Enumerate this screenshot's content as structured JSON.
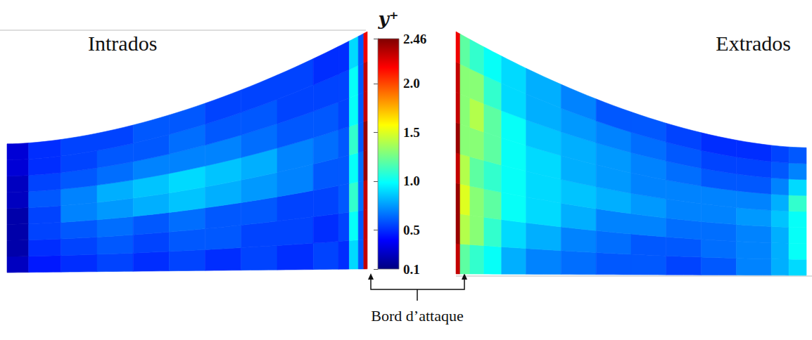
{
  "chart_data": {
    "type": "heatmap",
    "annotations": [
      "Bord d’attaque"
    ],
    "colorbar": {
      "title": "y⁺",
      "range": [
        0.1,
        2.46
      ],
      "ticks": [
        0.1,
        0.5,
        {
          "value": 1,
          "label": "1.0"
        },
        1.5,
        {
          "value": 2,
          "label": "2.0"
        },
        2.46
      ]
    },
    "panels": [
      {
        "name": "Intrados",
        "x_edges": [
          0,
          0.06,
          0.15,
          0.25,
          0.35,
          0.45,
          0.55,
          0.65,
          0.75,
          0.85,
          0.92,
          0.95,
          0.975,
          0.99,
          1.0
        ],
        "y_edges": [
          0,
          0.125,
          0.25,
          0.375,
          0.5,
          0.625,
          0.75,
          0.875,
          1.0
        ],
        "values": [
          [
            0.25,
            0.45,
            0.5,
            0.55,
            0.5,
            0.55,
            0.5,
            0.55,
            0.5,
            0.55,
            0.5,
            0.9,
            0.6,
            2.3
          ],
          [
            0.2,
            0.5,
            0.55,
            0.6,
            0.55,
            0.6,
            0.6,
            0.55,
            0.55,
            0.5,
            0.55,
            1.0,
            0.6,
            2.3
          ],
          [
            0.2,
            0.55,
            0.6,
            0.65,
            0.6,
            0.65,
            0.6,
            0.6,
            0.55,
            0.55,
            0.6,
            1.1,
            0.65,
            2.3
          ],
          [
            0.2,
            0.55,
            0.7,
            0.75,
            0.8,
            0.85,
            0.8,
            0.75,
            0.7,
            0.6,
            0.6,
            1.0,
            0.65,
            2.4
          ],
          [
            0.25,
            0.6,
            0.7,
            0.8,
            0.85,
            0.9,
            0.85,
            0.8,
            0.7,
            0.65,
            0.6,
            1.1,
            0.6,
            2.4
          ],
          [
            0.25,
            0.55,
            0.6,
            0.65,
            0.7,
            0.7,
            0.7,
            0.65,
            0.6,
            0.6,
            0.55,
            1.0,
            0.6,
            2.3
          ],
          [
            0.3,
            0.5,
            0.55,
            0.6,
            0.6,
            0.65,
            0.6,
            0.6,
            0.55,
            0.55,
            0.55,
            1.0,
            0.6,
            2.3
          ],
          [
            0.3,
            0.5,
            0.55,
            0.55,
            0.6,
            0.6,
            0.55,
            0.55,
            0.55,
            0.5,
            0.5,
            0.9,
            0.6,
            2.2
          ]
        ]
      },
      {
        "name": "Extrados",
        "x_edges": [
          0,
          0.012,
          0.04,
          0.08,
          0.13,
          0.2,
          0.3,
          0.4,
          0.5,
          0.6,
          0.7,
          0.8,
          0.9,
          0.95,
          1.0
        ],
        "y_edges": [
          0,
          0.125,
          0.25,
          0.375,
          0.5,
          0.625,
          0.75,
          0.875,
          1.0
        ],
        "values": [
          [
            2.3,
            1.2,
            1.1,
            1.0,
            0.8,
            0.7,
            0.65,
            0.6,
            0.6,
            0.55,
            0.6,
            0.7,
            0.8,
            0.9
          ],
          [
            2.4,
            1.4,
            1.3,
            1.1,
            0.9,
            0.8,
            0.7,
            0.65,
            0.6,
            0.6,
            0.65,
            0.7,
            0.8,
            1.0
          ],
          [
            2.4,
            1.5,
            1.3,
            1.2,
            1.0,
            0.9,
            0.8,
            0.7,
            0.7,
            0.65,
            0.65,
            0.7,
            0.8,
            1.0
          ],
          [
            2.3,
            1.4,
            1.2,
            1.1,
            1.0,
            0.9,
            0.85,
            0.8,
            0.75,
            0.7,
            0.7,
            0.75,
            0.85,
            1.0
          ],
          [
            2.4,
            1.3,
            1.3,
            1.2,
            1.0,
            0.9,
            0.8,
            0.75,
            0.7,
            0.7,
            0.7,
            0.7,
            0.8,
            1.1
          ],
          [
            2.3,
            1.3,
            1.4,
            1.2,
            1.0,
            0.85,
            0.8,
            0.75,
            0.7,
            0.65,
            0.6,
            0.6,
            0.7,
            0.9
          ],
          [
            2.3,
            1.3,
            1.3,
            1.1,
            0.9,
            0.8,
            0.75,
            0.7,
            0.65,
            0.6,
            0.55,
            0.55,
            0.6,
            0.7
          ],
          [
            2.2,
            1.2,
            1.1,
            1.0,
            0.9,
            0.8,
            0.7,
            0.6,
            0.6,
            0.55,
            0.5,
            0.5,
            0.55,
            0.6
          ]
        ]
      }
    ]
  }
}
